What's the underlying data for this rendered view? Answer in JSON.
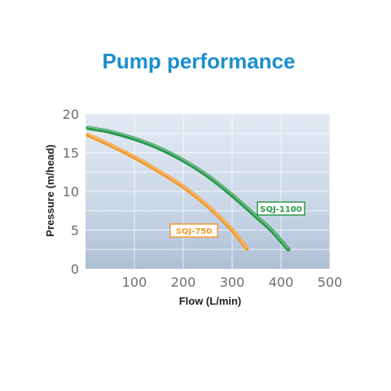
{
  "chart_data": {
    "type": "line",
    "title": "Pump performance",
    "xlabel": "Flow (L/min)",
    "ylabel": "Pressure (m/head)",
    "xlim": [
      0,
      500
    ],
    "ylim": [
      0,
      20
    ],
    "x_ticks": [
      "100",
      "200",
      "300",
      "400",
      "500"
    ],
    "y_ticks": [
      "0",
      "5",
      "10",
      "15",
      "20"
    ],
    "grid": true,
    "legend": "inline labels",
    "colors": {
      "title": "#1b8fcf",
      "tick": "#6e6e6e",
      "axis_label": "#222222",
      "plot_bg_top": "#e3eaf4",
      "plot_bg_mid": "#cdd9e8",
      "plot_bg_bottom": "#aebfd6",
      "grid": "#ffffff"
    },
    "series": [
      {
        "name": "SQJ-1100",
        "color": "#2a9a4c",
        "x": [
          5,
          50,
          100,
          150,
          200,
          250,
          300,
          350,
          380,
          415
        ],
        "y": [
          18.2,
          17.7,
          16.8,
          15.6,
          14.0,
          12.0,
          9.5,
          6.7,
          5.0,
          2.5
        ]
      },
      {
        "name": "SQJ-750",
        "color": "#f29a2e",
        "x": [
          5,
          50,
          100,
          150,
          200,
          250,
          300,
          330
        ],
        "y": [
          17.3,
          16.0,
          14.4,
          12.6,
          10.6,
          8.1,
          5.0,
          2.6
        ]
      }
    ]
  }
}
